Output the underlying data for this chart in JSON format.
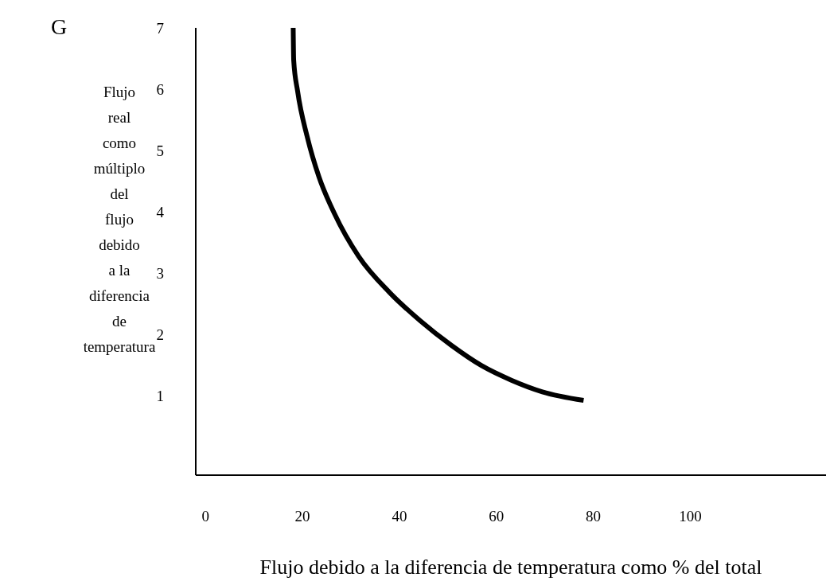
{
  "chart_data": {
    "type": "line",
    "xlabel": "Flujo debido a la diferencia de temperatura como % del total",
    "ylabel": "Flujo real como múltiplo del flujo debido a la diferencia de temperatura",
    "annotations": [
      "G"
    ],
    "x": [
      18.1,
      18.2,
      19.0,
      21.0,
      23.4,
      26.6,
      31.6,
      38.0,
      44.3,
      50.7,
      56.9,
      63.1,
      69.5,
      78.0
    ],
    "series": [
      {
        "color": "#000000",
        "values": [
          7,
          6.47,
          5.97,
          5.22,
          4.57,
          3.97,
          3.27,
          2.68,
          2.22,
          1.82,
          1.49,
          1.25,
          1.06,
          0.92
        ]
      }
    ],
    "xlim": [
      -2,
      128
    ],
    "xticks": [
      0,
      20,
      40,
      60,
      80,
      100
    ],
    "ylim": [
      -0.3,
      7
    ],
    "yticks": [
      1,
      2,
      3,
      4,
      5,
      6,
      7
    ]
  }
}
